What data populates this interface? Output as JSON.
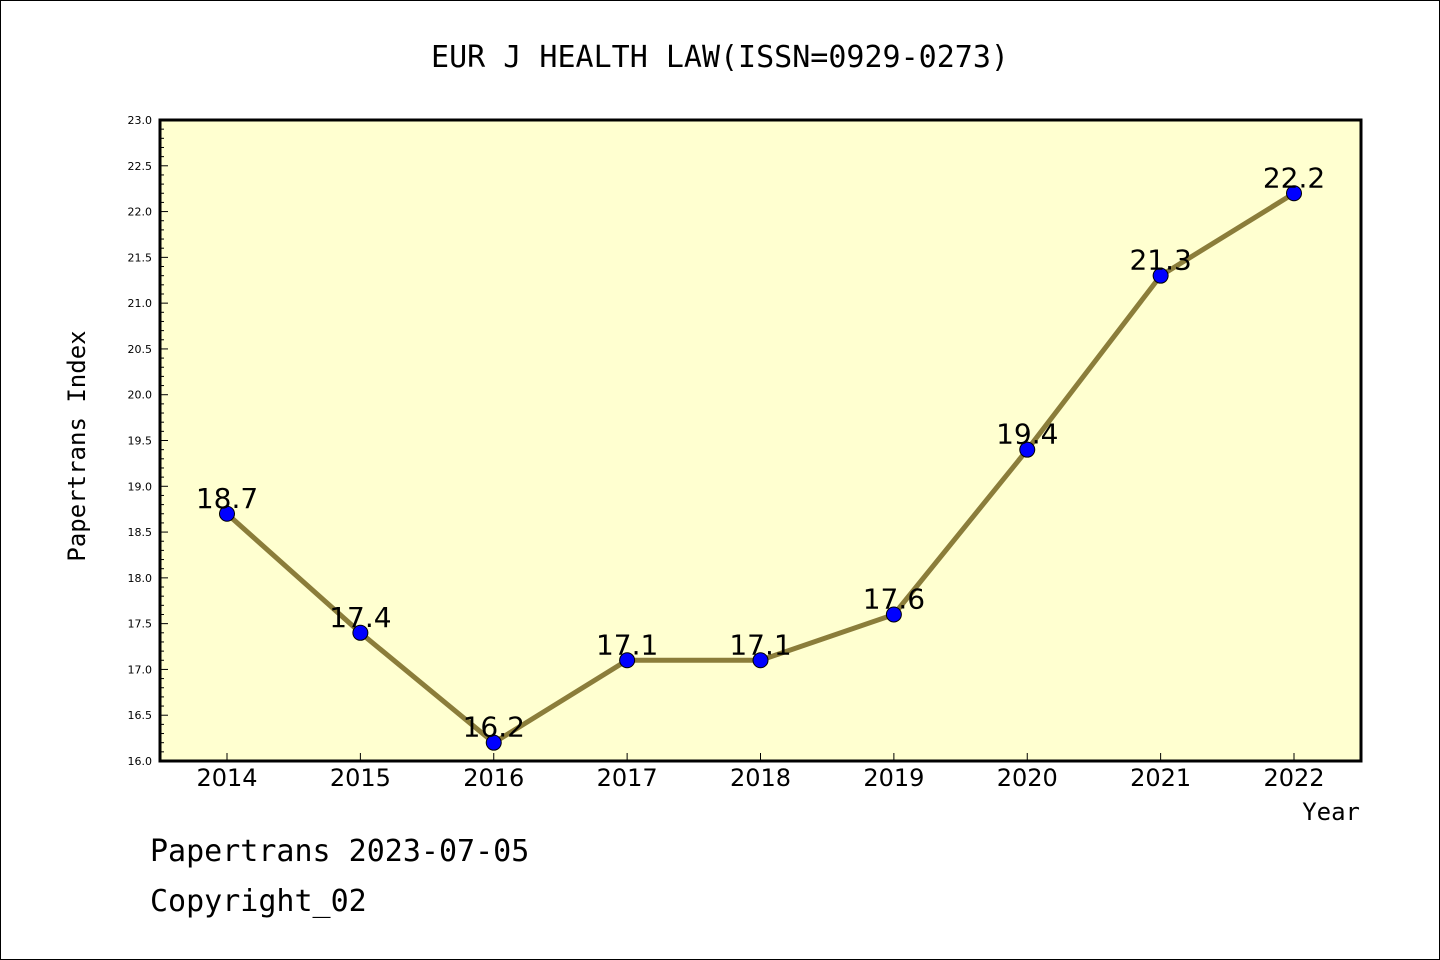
{
  "chart_data": {
    "type": "line",
    "title": "EUR J HEALTH LAW(ISSN=0929-0273)",
    "xlabel": "Year",
    "ylabel": "Papertrans Index",
    "categories": [
      "2014",
      "2015",
      "2016",
      "2017",
      "2018",
      "2019",
      "2020",
      "2021",
      "2022"
    ],
    "values": [
      18.7,
      17.4,
      16.2,
      17.1,
      17.1,
      17.6,
      19.4,
      21.3,
      22.2
    ],
    "data_labels": [
      "18.7",
      "17.4",
      "16.2",
      "17.1",
      "17.1",
      "17.6",
      "19.4",
      "21.3",
      "22.2"
    ],
    "ylim": [
      16.0,
      23.0
    ],
    "yticks": [
      "16.0",
      "16.5",
      "17.0",
      "17.5",
      "18.0",
      "18.5",
      "19.0",
      "19.5",
      "20.0",
      "20.5",
      "21.0",
      "21.5",
      "22.0",
      "22.5",
      "23.0"
    ],
    "grid": false,
    "legend": "none",
    "colors": {
      "plot_background": "#ffffd0",
      "line": "#8b7d3a",
      "marker": "#0000ff"
    }
  },
  "footer": {
    "date_line": "Papertrans 2023-07-05",
    "copyright_line": "Copyright_02"
  }
}
